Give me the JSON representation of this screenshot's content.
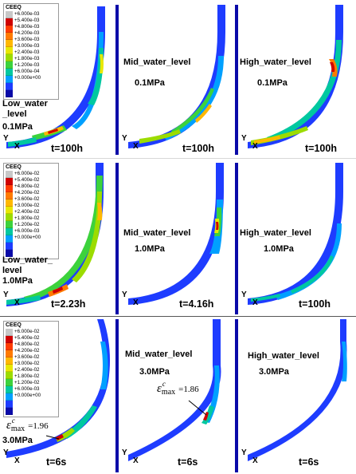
{
  "legends": [
    {
      "title": "CEEQ",
      "values": [
        "+6.000e-03",
        "+5.400e-03",
        "+4.800e-03",
        "+4.200e-03",
        "+3.600e-03",
        "+3.000e-03",
        "+2.400e-03",
        "+1.800e-03",
        "+1.200e-03",
        "+6.000e-04",
        "+0.000e+00"
      ]
    },
    {
      "title": "CEEQ",
      "values": [
        "+6.000e-02",
        "+5.400e-02",
        "+4.800e-02",
        "+4.200e-02",
        "+3.600e-02",
        "+3.000e-02",
        "+2.400e-02",
        "+1.800e-02",
        "+1.200e-02",
        "+6.000e-03",
        "+0.000e+00"
      ]
    },
    {
      "title": "CEEQ",
      "values": [
        "+6.000e-02",
        "+5.400e-02",
        "+4.800e-02",
        "+4.200e-02",
        "+3.600e-02",
        "+3.000e-02",
        "+2.400e-02",
        "+1.800e-02",
        "+1.200e-02",
        "+6.000e-03",
        "+0.000e+00"
      ]
    }
  ],
  "legend_colors": [
    "#c8c8c8",
    "#d00000",
    "#ff3b00",
    "#ff7a00",
    "#ffb800",
    "#e8e800",
    "#9cdc00",
    "#3cd23c",
    "#00c8a0",
    "#00a0ff",
    "#1e3cff",
    "#0a0aa8"
  ],
  "axis_labels": {
    "y": "Y",
    "x": "X"
  },
  "panels": [
    {
      "id": "r1c1",
      "case": "Low_water\n_level",
      "pressure": "0.1MPa",
      "time": "t=100h"
    },
    {
      "id": "r1c2",
      "case": "Mid_water_level",
      "pressure": "0.1MPa",
      "time": "t=100h"
    },
    {
      "id": "r1c3",
      "case": "High_water_level",
      "pressure": "0.1MPa",
      "time": "t=100h"
    },
    {
      "id": "r2c1",
      "case": "Low_water_\nlevel",
      "pressure": "1.0MPa",
      "time": "t=2.23h"
    },
    {
      "id": "r2c2",
      "case": "Mid_water_level",
      "pressure": "1.0MPa",
      "time": "t=4.16h"
    },
    {
      "id": "r2c3",
      "case": "High_water_level",
      "pressure": "1.0MPa",
      "time": "t=100h"
    },
    {
      "id": "r3c1",
      "case": "",
      "pressure": "3.0MPa",
      "time": "t=6s",
      "eps_label": "max",
      "eps_sup": "c",
      "eps_value": "=1.96"
    },
    {
      "id": "r3c2",
      "case": "Mid_water_level",
      "pressure": "3.0MPa",
      "time": "t=6s",
      "eps_label": "max",
      "eps_sup": "c",
      "eps_value": "=1.86"
    },
    {
      "id": "r3c3",
      "case": "High_water_level",
      "pressure": "3.0MPa",
      "time": "t=6s"
    }
  ]
}
